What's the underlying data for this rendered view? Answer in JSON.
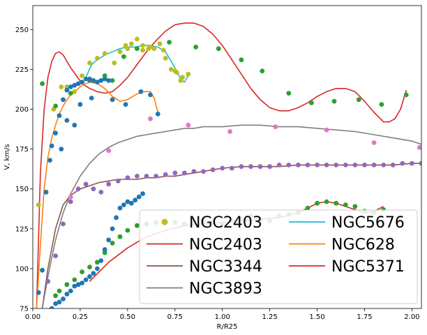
{
  "chart_data": {
    "type": "line",
    "xlabel": "R/R25",
    "ylabel": "V, km/s",
    "xlim": [
      0,
      2.05
    ],
    "ylim": [
      75,
      265
    ],
    "xticks": [
      0.0,
      0.25,
      0.5,
      0.75,
      1.0,
      1.25,
      1.5,
      1.75,
      2.0
    ],
    "xtick_labels": [
      "0.00",
      "0.25",
      "0.50",
      "0.75",
      "1.00",
      "1.25",
      "1.50",
      "1.75",
      "2.00"
    ],
    "yticks": [
      75,
      100,
      125,
      150,
      175,
      200,
      225,
      250
    ],
    "ytick_labels": [
      "75",
      "100",
      "125",
      "150",
      "175",
      "200",
      "225",
      "250"
    ],
    "grid": false,
    "legend_position": "lower-right",
    "legend_columns": 2,
    "series": [
      {
        "name": "NGC2403",
        "kind": "scatter",
        "color": "#bcbd22",
        "x": [
          0.03,
          0.07,
          0.11,
          0.15,
          0.18,
          0.22,
          0.26,
          0.3,
          0.34,
          0.38,
          0.43,
          0.46,
          0.49,
          0.52,
          0.55,
          0.58,
          0.61,
          0.64,
          0.67,
          0.7,
          0.73,
          0.76,
          0.79,
          0.82,
          0.5,
          0.58,
          0.62,
          0.69,
          0.75,
          0.78
        ],
        "y": [
          140,
          148,
          200,
          214,
          214,
          211,
          221,
          229,
          232,
          235,
          229,
          236,
          240,
          241,
          244,
          240,
          238,
          238,
          241,
          232,
          225,
          223,
          220,
          222,
          238,
          237,
          239,
          237,
          224,
          218
        ]
      },
      {
        "name": "NGC2403",
        "kind": "line",
        "color": "#d62728",
        "x": [
          0.02,
          0.04,
          0.06,
          0.08,
          0.1,
          0.12,
          0.14,
          0.16,
          0.18,
          0.2,
          0.23,
          0.26,
          0.3,
          0.34,
          0.38,
          0.42,
          0.46,
          0.5,
          0.55,
          0.6,
          0.65,
          0.7,
          0.75,
          0.8,
          0.85,
          0.9,
          0.95,
          1.0,
          1.05,
          1.1,
          1.15,
          1.2,
          1.25,
          1.3,
          1.35,
          1.4,
          1.45,
          1.5,
          1.55,
          1.6,
          1.65,
          1.7,
          1.75,
          1.8,
          1.85,
          1.88,
          1.91,
          1.94,
          1.97
        ],
        "y": [
          75,
          160,
          200,
          220,
          230,
          235,
          236,
          234,
          230,
          226,
          221,
          216,
          213,
          211,
          210,
          211,
          215,
          220,
          228,
          236,
          243,
          249,
          253,
          254,
          254,
          252,
          247,
          240,
          231,
          222,
          213,
          206,
          201,
          199,
          199,
          201,
          204,
          208,
          211,
          213,
          213,
          211,
          205,
          198,
          192,
          192,
          194,
          200,
          212
        ]
      },
      {
        "name": "NGC3344",
        "kind": "line",
        "color": "#8c564b",
        "x": [
          0.05,
          0.08,
          0.12,
          0.16,
          0.2,
          0.25,
          0.3,
          0.35,
          0.4,
          0.45,
          0.5,
          0.55,
          0.6,
          0.65,
          0.7,
          0.75,
          0.8,
          0.85,
          0.9,
          0.95,
          1.0,
          1.1,
          1.2,
          1.3,
          1.4,
          1.5,
          1.6,
          1.7,
          1.8,
          1.9,
          2.0,
          2.05
        ],
        "y": [
          75,
          100,
          125,
          140,
          146,
          150,
          152,
          154,
          155,
          156,
          156,
          156,
          157,
          157,
          158,
          158,
          159,
          160,
          161,
          162,
          163,
          164,
          164,
          164,
          165,
          165,
          165,
          165,
          165,
          165,
          166,
          166
        ]
      },
      {
        "name": "NGC3893",
        "kind": "line",
        "color": "#7f7f7f",
        "x": [
          0.05,
          0.08,
          0.12,
          0.16,
          0.2,
          0.25,
          0.3,
          0.35,
          0.4,
          0.45,
          0.5,
          0.55,
          0.6,
          0.65,
          0.7,
          0.75,
          0.8,
          0.85,
          0.9,
          1.0,
          1.1,
          1.2,
          1.3,
          1.4,
          1.5,
          1.6,
          1.7,
          1.8,
          1.9,
          2.0,
          2.05
        ],
        "y": [
          75,
          95,
          118,
          135,
          147,
          158,
          166,
          172,
          176,
          179,
          181,
          183,
          184,
          185,
          186,
          187,
          188,
          188,
          189,
          189,
          190,
          190,
          189,
          189,
          188,
          187,
          186,
          184,
          182,
          180,
          178
        ]
      },
      {
        "name": "NGC5676",
        "kind": "line",
        "color": "#17becf",
        "x": [
          0.28,
          0.31,
          0.34,
          0.38,
          0.42,
          0.46,
          0.5,
          0.54,
          0.58,
          0.62,
          0.66,
          0.7,
          0.74,
          0.78,
          0.8,
          0.82
        ],
        "y": [
          220,
          228,
          231,
          234,
          236,
          238,
          239,
          239,
          240,
          240,
          239,
          236,
          228,
          219,
          217,
          221
        ]
      },
      {
        "name": "NGC628",
        "kind": "line",
        "color": "#ff7f0e",
        "x": [
          0.02,
          0.04,
          0.06,
          0.08,
          0.1,
          0.12,
          0.14,
          0.16,
          0.18,
          0.2,
          0.23,
          0.26,
          0.3,
          0.34,
          0.38,
          0.42,
          0.46,
          0.5,
          0.54,
          0.58,
          0.62,
          0.64,
          0.66
        ],
        "y": [
          75,
          115,
          150,
          170,
          182,
          190,
          197,
          202,
          206,
          209,
          212,
          215,
          217,
          216,
          213,
          208,
          205,
          206,
          209,
          211,
          211,
          207,
          198
        ]
      },
      {
        "name": "NGC5371",
        "kind": "line",
        "color": "#d62728",
        "x": [
          0.3,
          0.4,
          0.5,
          0.6,
          0.7,
          0.8,
          0.9,
          1.0,
          1.1,
          1.2,
          1.3,
          1.4,
          1.45,
          1.5,
          1.55,
          1.6,
          1.65,
          1.7,
          1.75,
          1.8,
          1.85
        ],
        "y": [
          92,
          104,
          113,
          120,
          124,
          127,
          128,
          129,
          130,
          131,
          132,
          135,
          138,
          141,
          142,
          141,
          139,
          137,
          135,
          136,
          139
        ]
      },
      {
        "name": "",
        "kind": "scatter",
        "color": "#2ca02c",
        "x": [
          0.05,
          0.12,
          0.2,
          0.3,
          0.38,
          0.42,
          0.48,
          0.55,
          0.72,
          0.86,
          0.98,
          1.1,
          1.21,
          1.35,
          1.47,
          1.59,
          1.72,
          1.84,
          1.97,
          0.12,
          0.14,
          0.18,
          0.22,
          0.26,
          0.3,
          0.34,
          0.38,
          0.42,
          0.46,
          0.5,
          0.55,
          0.6,
          0.65,
          0.7,
          0.75,
          0.8,
          0.85,
          0.9,
          0.95,
          1.0,
          1.05,
          1.1,
          1.15,
          1.2,
          1.25,
          1.3,
          1.35,
          1.4,
          1.45,
          1.5,
          1.55,
          1.6,
          1.65,
          1.7,
          1.75,
          1.8,
          1.85
        ],
        "y": [
          216,
          202,
          210,
          218,
          221,
          218,
          233,
          238,
          242,
          239,
          238,
          231,
          224,
          210,
          204,
          205,
          206,
          203,
          209,
          83,
          86,
          90,
          93,
          98,
          101,
          104,
          110,
          116,
          120,
          124,
          127,
          128,
          129,
          129,
          129,
          128,
          129,
          130,
          129,
          128,
          130,
          131,
          133,
          131,
          130,
          133,
          134,
          135,
          138,
          141,
          142,
          141,
          140,
          139,
          136,
          135,
          137
        ]
      },
      {
        "name": "",
        "kind": "scatter",
        "color": "#1f77b4",
        "x": [
          0.03,
          0.05,
          0.07,
          0.09,
          0.1,
          0.12,
          0.14,
          0.16,
          0.18,
          0.2,
          0.22,
          0.24,
          0.26,
          0.28,
          0.3,
          0.32,
          0.34,
          0.36,
          0.38,
          0.4,
          0.15,
          0.18,
          0.22,
          0.25,
          0.31,
          0.42,
          0.49,
          0.57,
          0.62,
          0.66,
          0.1,
          0.12,
          0.14,
          0.16,
          0.18,
          0.2,
          0.22,
          0.24,
          0.26,
          0.28,
          0.3,
          0.32,
          0.34,
          0.36,
          0.38,
          0.4,
          0.42,
          0.44,
          0.46,
          0.48,
          0.5,
          0.52,
          0.54,
          0.56,
          0.58
        ],
        "y": [
          85,
          99,
          148,
          168,
          177,
          185,
          196,
          206,
          212,
          214,
          215,
          216,
          217,
          219,
          219,
          218,
          217,
          218,
          219,
          218,
          175,
          193,
          190,
          203,
          207,
          206,
          203,
          211,
          209,
          197,
          75,
          78,
          79,
          81,
          84,
          86,
          89,
          90,
          91,
          93,
          95,
          97,
          100,
          105,
          112,
          118,
          125,
          132,
          138,
          140,
          142,
          141,
          143,
          145,
          147
        ]
      },
      {
        "name": "",
        "kind": "scatter",
        "color": "#9467bd",
        "x": [
          0.08,
          0.12,
          0.16,
          0.2,
          0.24,
          0.28,
          0.32,
          0.36,
          0.4,
          0.45,
          0.5,
          0.55,
          0.6,
          0.65,
          0.7,
          0.75,
          0.8,
          0.85,
          0.9,
          0.95,
          1.0,
          1.05,
          1.1,
          1.15,
          1.2,
          1.25,
          1.3,
          1.35,
          1.4,
          1.45,
          1.5,
          1.55,
          1.6,
          1.65,
          1.7,
          1.75,
          1.8,
          1.85,
          1.9,
          1.95,
          2.0,
          2.05
        ],
        "y": [
          92,
          108,
          128,
          142,
          150,
          153,
          150,
          148,
          153,
          155,
          157,
          158,
          158,
          158,
          159,
          160,
          160,
          161,
          161,
          162,
          163,
          163,
          164,
          164,
          164,
          164,
          165,
          165,
          165,
          165,
          165,
          165,
          165,
          165,
          165,
          165,
          165,
          165,
          165,
          166,
          166,
          166
        ]
      },
      {
        "name": "",
        "kind": "scatter",
        "color": "#e377c2",
        "x": [
          0.2,
          0.4,
          0.62,
          0.82,
          1.04,
          1.28,
          1.55,
          1.8,
          2.04
        ],
        "y": [
          145,
          174,
          194,
          190,
          186,
          189,
          187,
          179,
          176
        ]
      }
    ],
    "legend_entries": [
      {
        "label": "NGC2403",
        "color": "#bcbd22",
        "marker": "dot"
      },
      {
        "label": "NGC2403",
        "color": "#d62728",
        "marker": "line"
      },
      {
        "label": "NGC3344",
        "color": "#8c564b",
        "marker": "line"
      },
      {
        "label": "NGC3893",
        "color": "#7f7f7f",
        "marker": "line"
      },
      {
        "label": "NGC5676",
        "color": "#17becf",
        "marker": "line"
      },
      {
        "label": "NGC628",
        "color": "#ff7f0e",
        "marker": "line"
      },
      {
        "label": "NGC5371",
        "color": "#d62728",
        "marker": "line"
      }
    ]
  }
}
